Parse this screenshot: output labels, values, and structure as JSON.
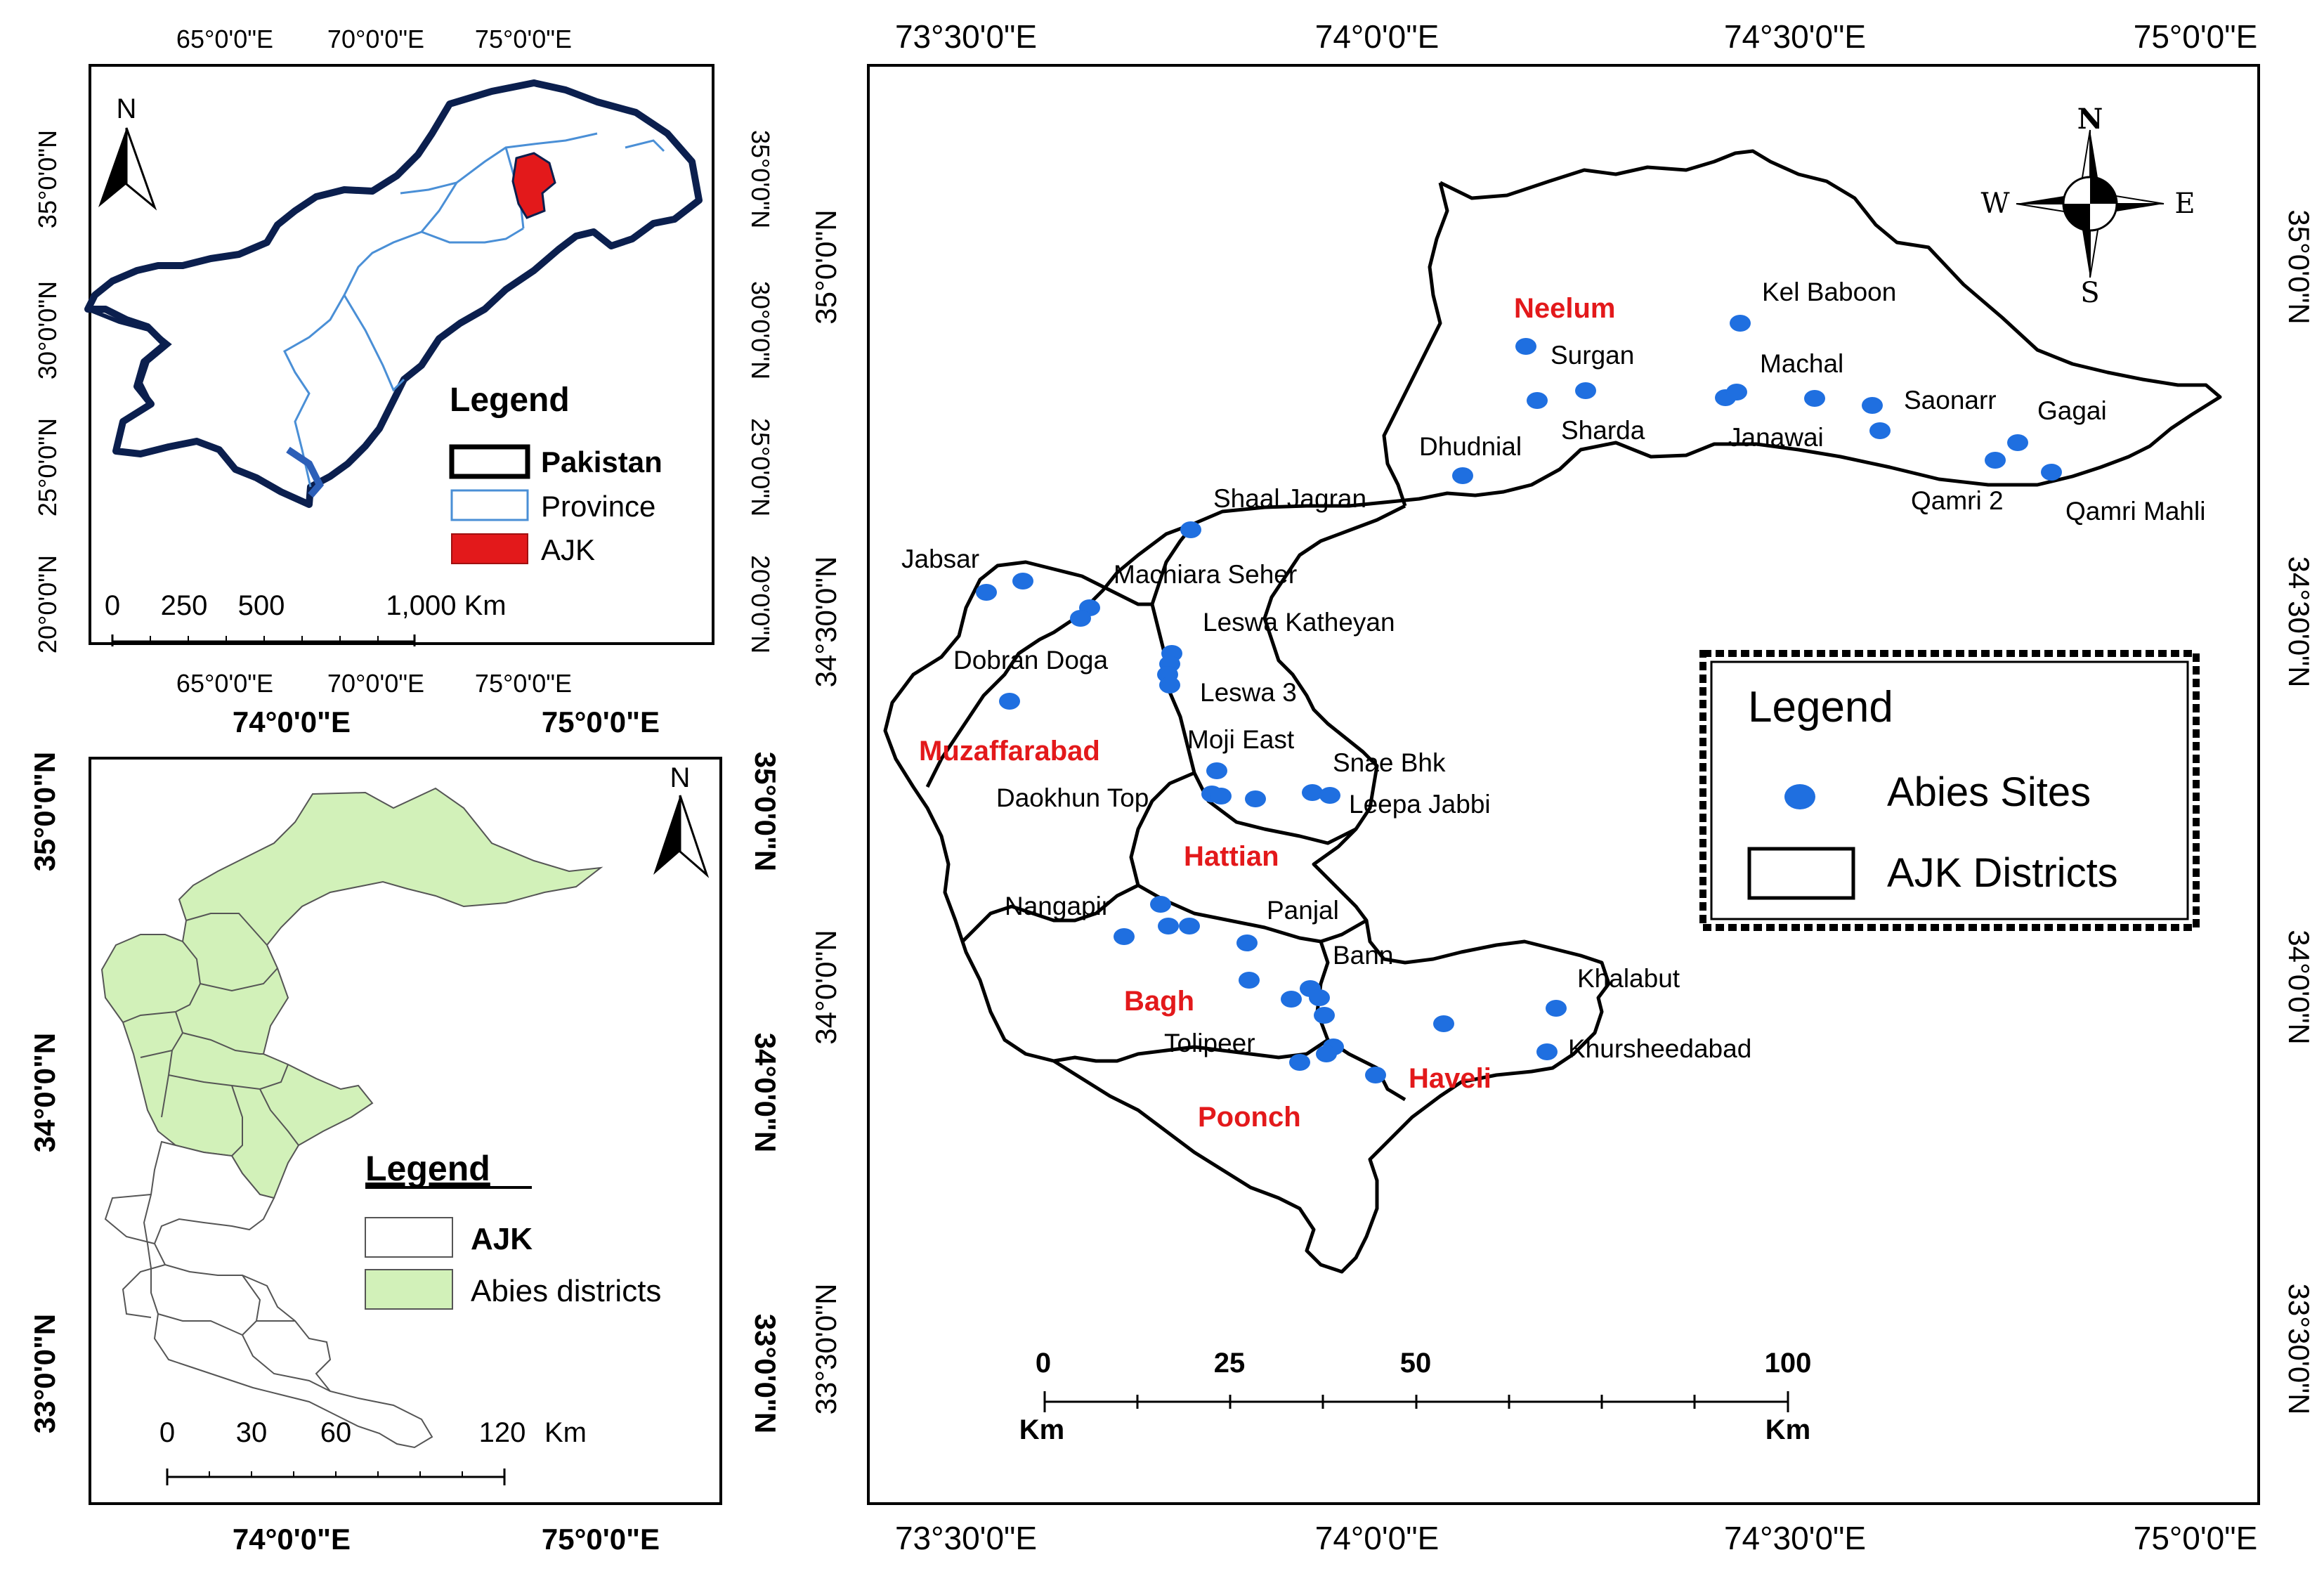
{
  "inset_pakistan": {
    "lon_ticks": [
      "65°0'0\"E",
      "70°0'0\"E",
      "75°0'0\"E"
    ],
    "lat_ticks": [
      "35°0'0\"N",
      "30°0'0\"N",
      "25°0'0\"N",
      "20°0'0\"N"
    ],
    "north_label": "N",
    "scale_labels": [
      "0",
      "250",
      "500",
      "1,000 Km"
    ],
    "legend": {
      "title": "Legend",
      "items": [
        {
          "label": "Pakistan",
          "symbol": "black-outline",
          "color": "#000000"
        },
        {
          "label": "Province",
          "symbol": "blue-outline",
          "color": "#4a8fd6"
        },
        {
          "label": "AJK",
          "symbol": "red-fill",
          "color": "#e3191b"
        }
      ]
    },
    "colors": {
      "country_outline": "#0b1f4e",
      "province_lines": "#4a8fd6",
      "ajk_fill": "#e3191b",
      "coast": "#2c5fb8"
    }
  },
  "inset_ajk": {
    "lon_ticks": [
      "74°0'0\"E",
      "75°0'0\"E"
    ],
    "lat_ticks": [
      "35°0'0\"N",
      "34°0'0\"N",
      "33°0'0\"N"
    ],
    "north_label": "N",
    "scale_labels": [
      "0",
      "30",
      "60",
      "120",
      "Km"
    ],
    "legend": {
      "title": "Legend",
      "items": [
        {
          "label": "AJK",
          "symbol": "white-fill"
        },
        {
          "label": "Abies districts",
          "symbol": "green-fill",
          "color": "#d2f1b9"
        }
      ]
    }
  },
  "main_map": {
    "lon_ticks": [
      "73°30'0\"E",
      "74°0'0\"E",
      "74°30'0\"E",
      "75°0'0\"E"
    ],
    "lat_ticks": [
      "35°0'0\"N",
      "34°30'0\"N",
      "34°0'0\"N",
      "33°30'0\"N"
    ],
    "compass": {
      "n": "N",
      "s": "S",
      "e": "E",
      "w": "W"
    },
    "districts": [
      "Neelum",
      "Muzaffarabad",
      "Hattian",
      "Bagh",
      "Haveli",
      "Poonch"
    ],
    "site_labels": [
      "Kel Baboon",
      "Surgan",
      "Machal",
      "Saonarr",
      "Gagai",
      "Sharda",
      "Janawai",
      "Dhudnial",
      "Qamri 2",
      "Qamri Mahli",
      "Shaal Jagran",
      "Jabsar",
      "Machiara Seher",
      "Leswa Katheyan",
      "Dobran Doga",
      "Leswa 3",
      "Moji East",
      "Snae Bhk",
      "Daokhun Top",
      "Leepa Jabbi",
      "Nangapir",
      "Panjal",
      "Bann",
      "Khalabut",
      "Tolipeer",
      "Khursheedabad"
    ],
    "scale_labels": [
      "0",
      "25",
      "50",
      "100"
    ],
    "scale_unit": "Km",
    "legend": {
      "title": "Legend",
      "items": [
        {
          "label": "Abies Sites",
          "symbol": "blue-dot",
          "color": "#1f6fe0"
        },
        {
          "label": "AJK Districts",
          "symbol": "black-outline"
        }
      ]
    },
    "site_count": 46
  }
}
